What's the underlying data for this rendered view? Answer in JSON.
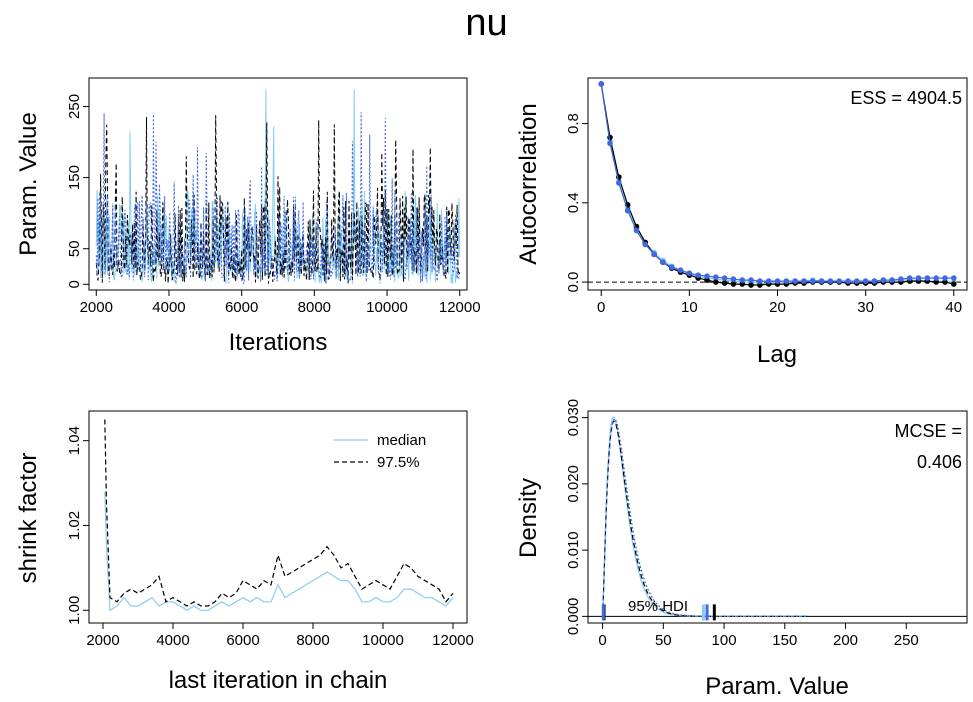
{
  "title": "nu",
  "colors": {
    "chain1": "#87ceeb",
    "chain2": "#000000",
    "chain3": "#4169e1"
  },
  "chart_data": [
    {
      "id": "trace",
      "type": "line",
      "xlabel": "Iterations",
      "ylabel": "Param. Value",
      "xlim": [
        1800,
        12200
      ],
      "ylim": [
        -8,
        290
      ],
      "xticks": [
        2000,
        4000,
        6000,
        8000,
        10000,
        12000
      ],
      "yticks": [
        0,
        50,
        150,
        250
      ],
      "x_range": [
        2000,
        12000
      ],
      "series": [
        {
          "style": "solid",
          "color": "#87ceeb",
          "max": 280
        },
        {
          "style": "dashed",
          "color": "#000000",
          "max": 262
        },
        {
          "style": "dotted",
          "color": "#4169e1",
          "max": 260
        }
      ]
    },
    {
      "id": "autocorrelation",
      "type": "line",
      "xlabel": "Lag",
      "ylabel": "Autocorrelation",
      "annotation": "ESS = 4904.5",
      "xlim": [
        -1.5,
        41.5
      ],
      "ylim": [
        -0.04,
        1.03
      ],
      "xticks": [
        0,
        10,
        20,
        30,
        40
      ],
      "yticks": [
        0.0,
        0.4,
        0.8
      ],
      "lags": [
        0,
        1,
        2,
        3,
        4,
        5,
        6,
        7,
        8,
        9,
        10,
        11,
        12,
        13,
        14,
        15,
        16,
        17,
        18,
        19,
        20,
        21,
        22,
        23,
        24,
        25,
        26,
        27,
        28,
        29,
        30,
        31,
        32,
        33,
        34,
        35,
        36,
        37,
        38,
        39,
        40
      ],
      "series": [
        {
          "color": "#87ceeb",
          "values": [
            1.0,
            0.71,
            0.51,
            0.37,
            0.27,
            0.2,
            0.15,
            0.11,
            0.08,
            0.06,
            0.04,
            0.03,
            0.02,
            0.015,
            0.01,
            0.005,
            0.0,
            0.0,
            -0.005,
            -0.005,
            0.0,
            0.0,
            0.005,
            0.005,
            0.01,
            0.005,
            0.005,
            0.0,
            0.0,
            0.0,
            0.005,
            0.005,
            0.01,
            0.01,
            0.01,
            0.01,
            0.01,
            0.005,
            0.005,
            0.0,
            0.0
          ]
        },
        {
          "color": "#000000",
          "values": [
            1.0,
            0.73,
            0.53,
            0.39,
            0.28,
            0.2,
            0.14,
            0.1,
            0.07,
            0.05,
            0.035,
            0.02,
            0.01,
            0.0,
            -0.005,
            -0.01,
            -0.01,
            -0.015,
            -0.015,
            -0.01,
            -0.01,
            -0.01,
            -0.005,
            -0.005,
            0.0,
            0.0,
            0.0,
            0.0,
            -0.005,
            -0.005,
            -0.005,
            -0.005,
            0.0,
            0.0,
            0.0,
            0.005,
            0.005,
            0.005,
            0.0,
            0.0,
            -0.01
          ]
        },
        {
          "color": "#4169e1",
          "values": [
            1.0,
            0.7,
            0.5,
            0.36,
            0.26,
            0.19,
            0.14,
            0.1,
            0.075,
            0.06,
            0.045,
            0.035,
            0.03,
            0.025,
            0.02,
            0.015,
            0.01,
            0.01,
            0.005,
            0.005,
            0.005,
            0.005,
            0.005,
            0.005,
            0.005,
            0.005,
            0.005,
            0.005,
            0.005,
            0.005,
            0.005,
            0.005,
            0.01,
            0.01,
            0.015,
            0.02,
            0.02,
            0.02,
            0.02,
            0.02,
            0.02
          ]
        }
      ]
    },
    {
      "id": "shrink",
      "type": "line",
      "xlabel": "last iteration in chain",
      "ylabel": "shrink factor",
      "xlim": [
        1600,
        12400
      ],
      "ylim": [
        0.997,
        1.047
      ],
      "xticks": [
        2000,
        4000,
        6000,
        8000,
        10000,
        12000
      ],
      "yticks": [
        1.0,
        1.02,
        1.04
      ],
      "legend": [
        "median",
        "97.5%"
      ],
      "legend_position": "top-right",
      "x": [
        2050,
        2100,
        2200,
        2400,
        2600,
        2800,
        3000,
        3200,
        3400,
        3600,
        3800,
        4000,
        4200,
        4400,
        4600,
        4800,
        5000,
        5200,
        5400,
        5600,
        5800,
        6000,
        6200,
        6400,
        6600,
        6800,
        7000,
        7200,
        7400,
        7600,
        7800,
        8000,
        8200,
        8400,
        8600,
        8800,
        9000,
        9200,
        9400,
        9600,
        9800,
        10000,
        10200,
        10400,
        10600,
        10800,
        11000,
        11200,
        11400,
        11600,
        11800,
        12000
      ],
      "series": [
        {
          "name": "median",
          "color": "#87ceeb",
          "style": "solid",
          "values": [
            1.028,
            1.015,
            1.0,
            1.001,
            1.003,
            1.001,
            1.001,
            1.002,
            1.003,
            1.001,
            1.002,
            1.002,
            1.001,
            1.0,
            1.001,
            1.0,
            1.0,
            1.001,
            1.002,
            1.001,
            1.002,
            1.003,
            1.002,
            1.003,
            1.002,
            1.002,
            1.006,
            1.003,
            1.004,
            1.005,
            1.006,
            1.007,
            1.008,
            1.009,
            1.008,
            1.007,
            1.007,
            1.005,
            1.002,
            1.002,
            1.003,
            1.002,
            1.002,
            1.003,
            1.005,
            1.005,
            1.004,
            1.003,
            1.003,
            1.002,
            1.001,
            1.003
          ]
        },
        {
          "name": "97.5%",
          "color": "#000000",
          "style": "dashed",
          "values": [
            1.045,
            1.025,
            1.003,
            1.002,
            1.004,
            1.005,
            1.004,
            1.005,
            1.006,
            1.008,
            1.002,
            1.003,
            1.002,
            1.001,
            1.002,
            1.001,
            1.001,
            1.002,
            1.004,
            1.003,
            1.004,
            1.007,
            1.006,
            1.005,
            1.007,
            1.006,
            1.013,
            1.008,
            1.009,
            1.01,
            1.011,
            1.012,
            1.013,
            1.015,
            1.013,
            1.01,
            1.011,
            1.008,
            1.005,
            1.006,
            1.007,
            1.006,
            1.005,
            1.008,
            1.011,
            1.01,
            1.008,
            1.007,
            1.006,
            1.005,
            1.002,
            1.004
          ]
        }
      ]
    },
    {
      "id": "density",
      "type": "line",
      "xlabel": "Param. Value",
      "ylabel": "Density",
      "annotation_line1": "MCSE =",
      "annotation_line2": "0.406",
      "hdi_label": "95% HDI",
      "xlim": [
        -12,
        300
      ],
      "ylim": [
        -0.001,
        0.031
      ],
      "xticks": [
        0,
        50,
        100,
        150,
        200,
        250
      ],
      "yticks": [
        0.0,
        0.01,
        0.02,
        0.03
      ],
      "ytick_labels": [
        "0.000",
        "0.010",
        "0.020",
        "0.030"
      ],
      "hdi_marks": [
        {
          "color": "#87ceeb",
          "values": [
            0.8,
            83
          ]
        },
        {
          "color": "#000000",
          "values": [
            1.2,
            92
          ]
        },
        {
          "color": "#4169e1",
          "values": [
            0.6,
            86
          ]
        }
      ],
      "series": [
        {
          "color": "#87ceeb",
          "style": "solid",
          "peak": 0.0301
        },
        {
          "color": "#000000",
          "style": "dashed",
          "peak": 0.0295
        },
        {
          "color": "#4169e1",
          "style": "dotted",
          "peak": 0.0298
        }
      ],
      "mode": 9,
      "x_max": 168
    }
  ]
}
